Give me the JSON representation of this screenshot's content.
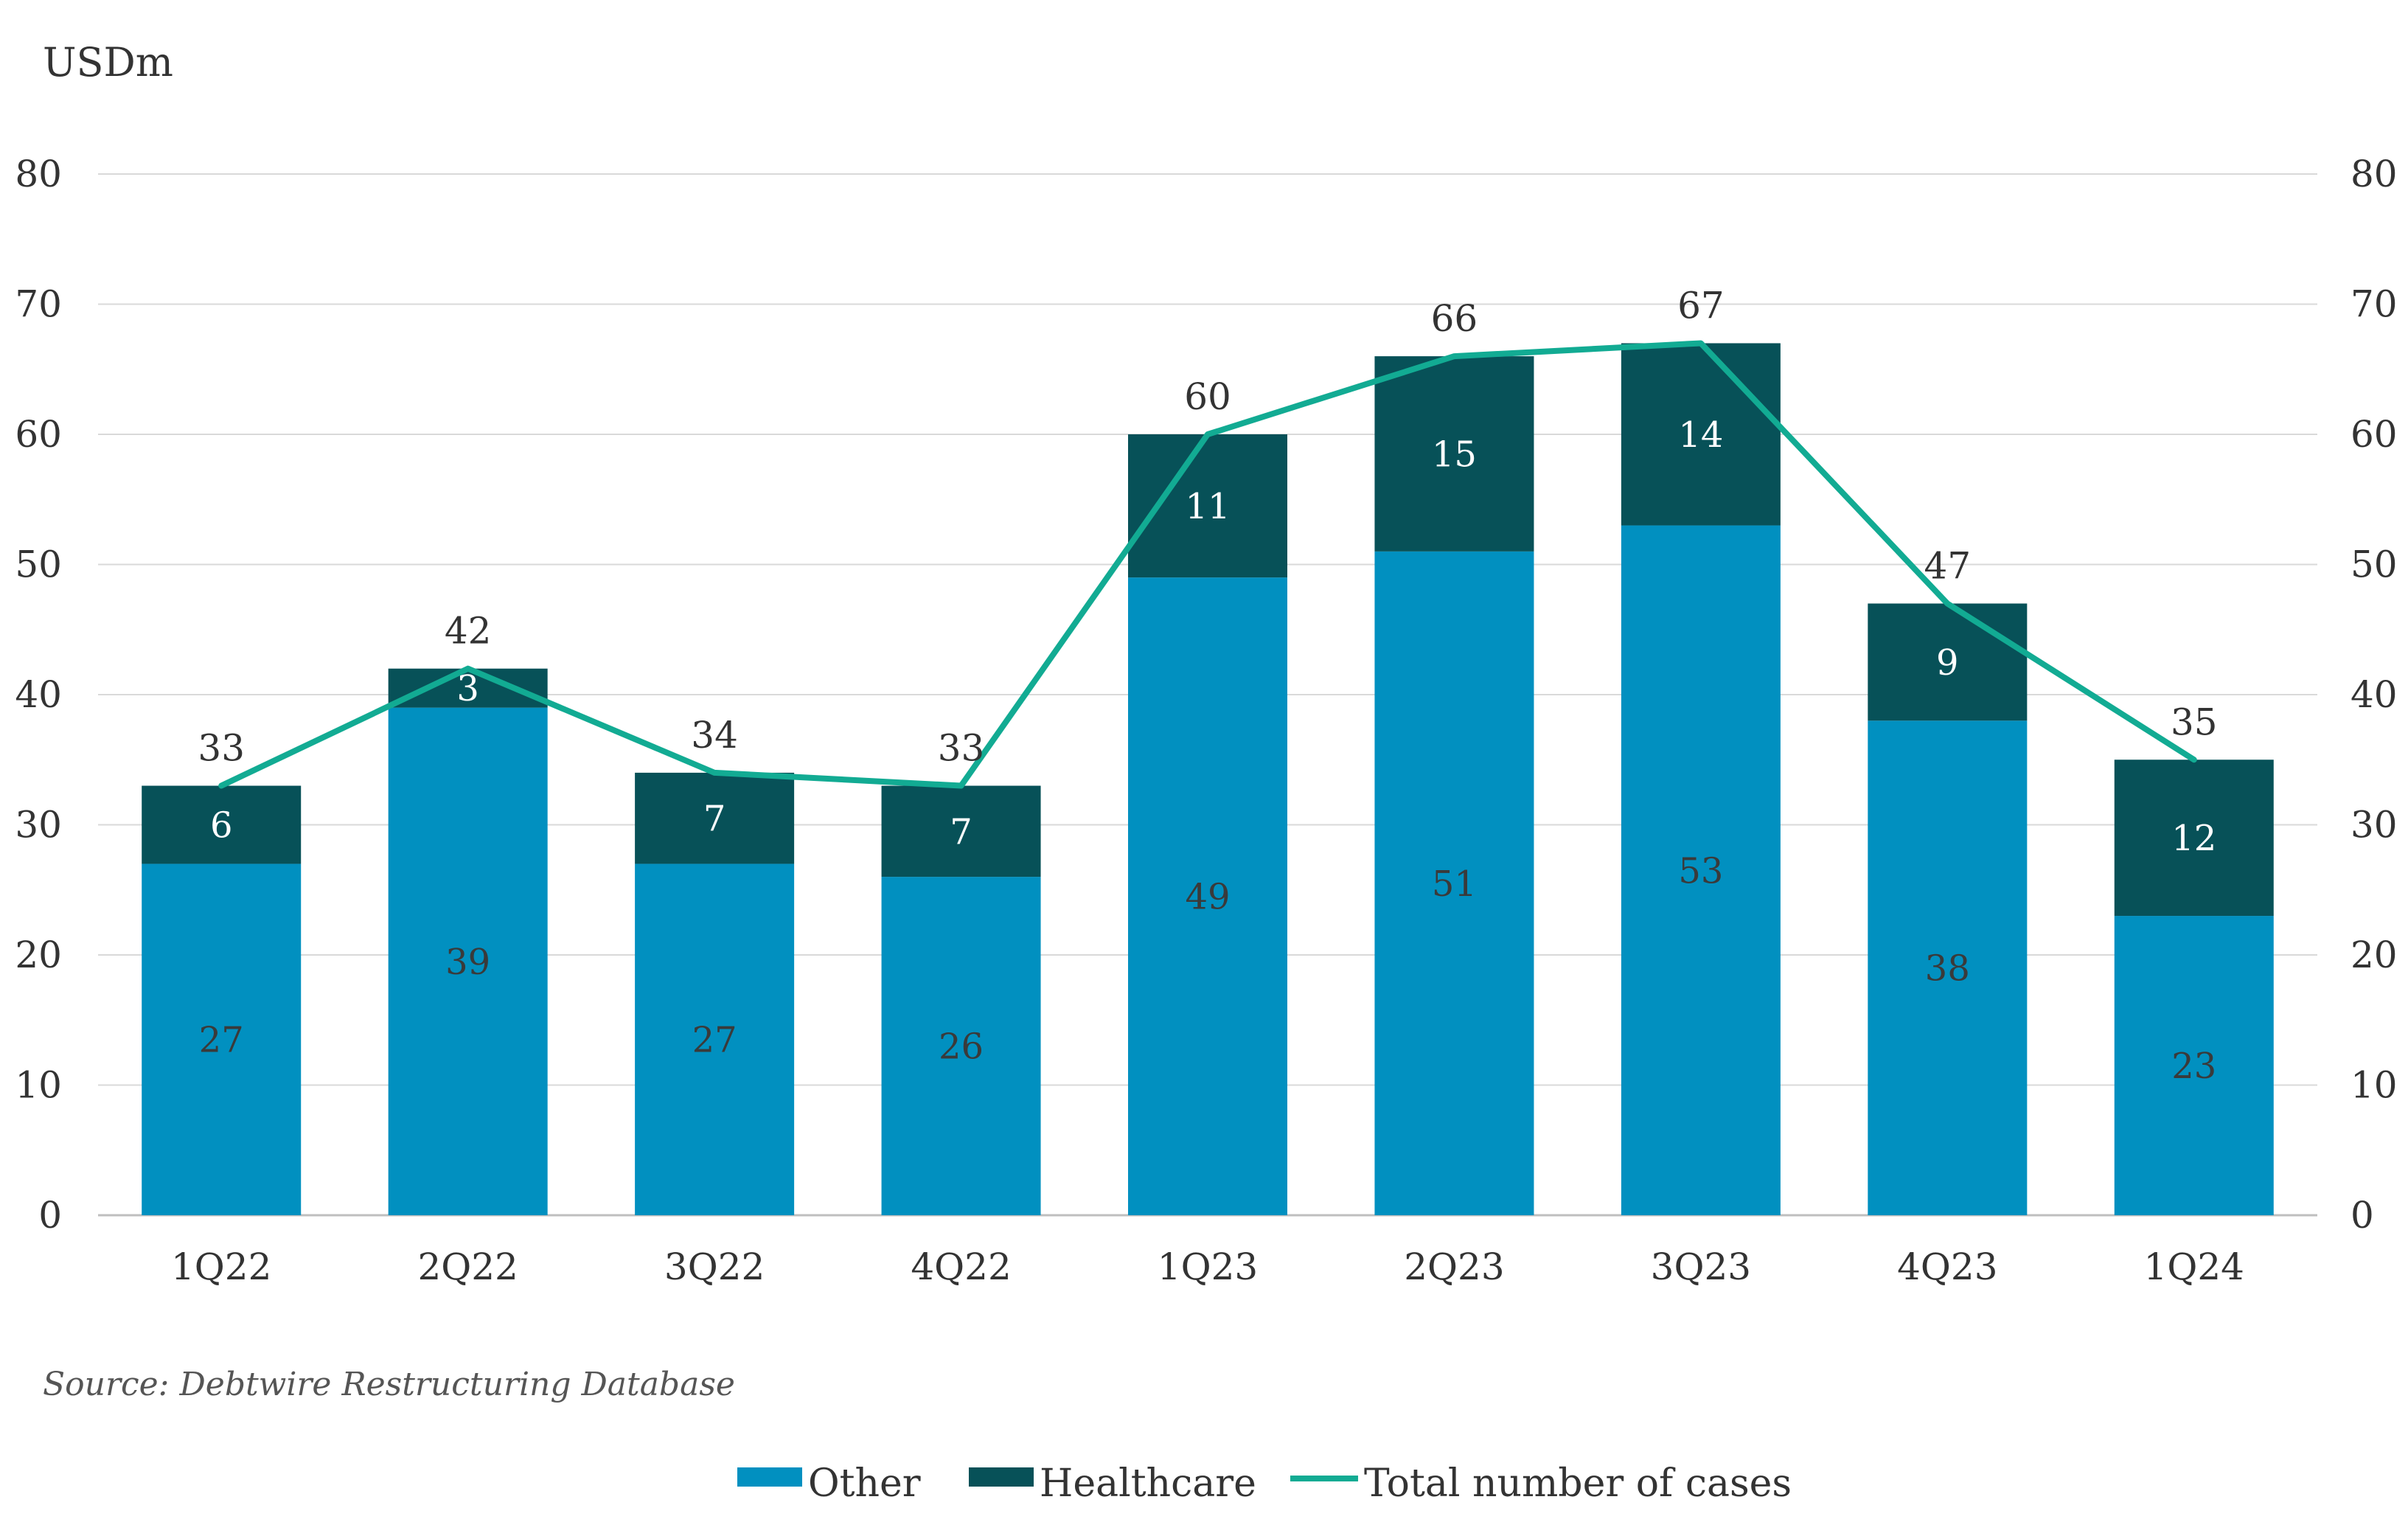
{
  "chart_data": {
    "type": "bar",
    "stacked": true,
    "unit_label": "USDm",
    "categories": [
      "1Q22",
      "2Q22",
      "3Q22",
      "4Q22",
      "1Q23",
      "2Q23",
      "3Q23",
      "4Q23",
      "1Q24"
    ],
    "series": [
      {
        "name": "Other",
        "type": "bar",
        "color": "#0190c0",
        "values": [
          27,
          39,
          27,
          26,
          49,
          51,
          53,
          38,
          23
        ]
      },
      {
        "name": "Healthcare",
        "type": "bar",
        "color": "#075158",
        "values": [
          6,
          3,
          7,
          7,
          11,
          15,
          14,
          9,
          12
        ]
      },
      {
        "name": "Total number of cases",
        "type": "line",
        "color": "#12ab93",
        "values": [
          33,
          42,
          34,
          33,
          60,
          66,
          67,
          47,
          35
        ]
      }
    ],
    "ylim": [
      0,
      80
    ],
    "y_ticks": [
      0,
      10,
      20,
      30,
      40,
      50,
      60,
      70,
      80
    ],
    "y2_ticks": [
      0,
      10,
      20,
      30,
      40,
      50,
      60,
      70,
      80
    ],
    "grid": true,
    "legend": "bottom-center",
    "source_note": "Source: Debtwire Restructuring Database"
  }
}
